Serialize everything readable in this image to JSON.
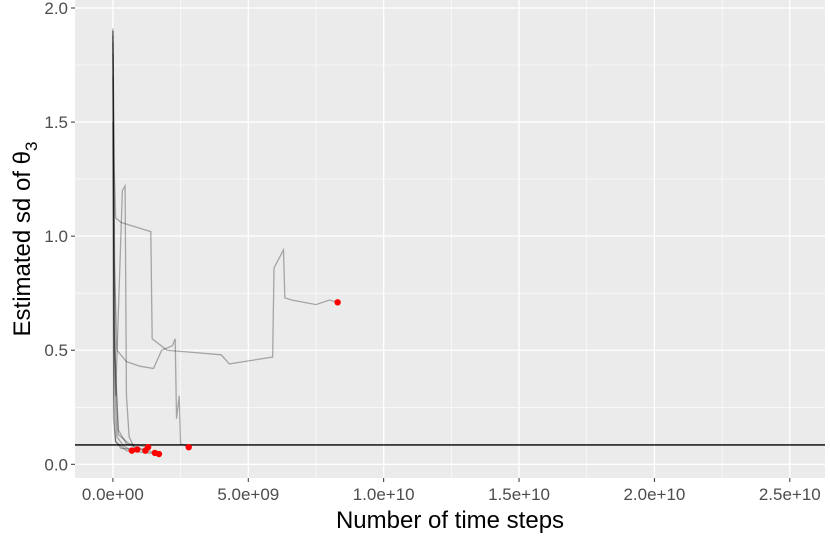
{
  "chart_data": {
    "type": "line",
    "x_label": "Number of time steps",
    "y_label": {
      "text": "Estimated sd of θ",
      "subscript": "3"
    },
    "xlim": [
      -1400000000.0,
      26300000000.0
    ],
    "ylim": [
      -0.06,
      2.035
    ],
    "xticks": [
      {
        "value": 0,
        "label": "0.0e+00"
      },
      {
        "value": 5000000000.0,
        "label": "5.0e+09"
      },
      {
        "value": 10000000000.0,
        "label": "1.0e+10"
      },
      {
        "value": 15000000000.0,
        "label": "1.5e+10"
      },
      {
        "value": 20000000000.0,
        "label": "2.0e+10"
      },
      {
        "value": 25000000000.0,
        "label": "2.5e+10"
      }
    ],
    "yticks": [
      {
        "value": 0,
        "label": "0.0"
      },
      {
        "value": 0.5,
        "label": "0.5"
      },
      {
        "value": 1,
        "label": "1.0"
      },
      {
        "value": 1.5,
        "label": "1.5"
      },
      {
        "value": 2,
        "label": "2.0"
      }
    ],
    "x_minor_ticks": [
      2500000000.0,
      7500000000.0,
      12500000000.0,
      17500000000.0,
      22500000000.0
    ],
    "y_minor_ticks": [
      0.25,
      0.75,
      1.25,
      1.75
    ],
    "grid": true,
    "line_color": "#000000",
    "line_opacity": 0.3,
    "endpoint_color": "#ff0000",
    "hline": 0.085,
    "hline_color": "#000000",
    "series": [
      {
        "x": [
          0,
          50000000.0,
          100000000.0,
          300000000.0,
          1400000000.0,
          1450000000.0,
          2000000000.0,
          3000000000.0,
          4000000000.0,
          4300000000.0,
          5900000000.0,
          5950000000.0,
          6300000000.0,
          6350000000.0,
          6600000000.0,
          7500000000.0,
          8000000000.0,
          8300000000.0
        ],
        "values": [
          1.9,
          1.3,
          1.08,
          1.06,
          1.02,
          0.55,
          0.5,
          0.49,
          0.48,
          0.44,
          0.47,
          0.86,
          0.94,
          0.73,
          0.72,
          0.7,
          0.72,
          0.71
        ]
      },
      {
        "x": [
          0,
          50000000.0,
          150000000.0,
          500000000.0,
          1000000000.0,
          1500000000.0,
          1800000000.0,
          2200000000.0,
          2300000000.0,
          2350000000.0,
          2450000000.0,
          2500000000.0,
          2800000000.0
        ],
        "values": [
          1.85,
          0.9,
          0.5,
          0.45,
          0.43,
          0.42,
          0.5,
          0.52,
          0.55,
          0.2,
          0.3,
          0.09,
          0.075
        ]
      },
      {
        "x": [
          0,
          100000000.0,
          350000000.0,
          450000000.0,
          500000000.0,
          600000000.0,
          800000000.0,
          1200000000.0
        ],
        "values": [
          1.9,
          0.3,
          1.2,
          1.22,
          0.3,
          0.12,
          0.07,
          0.06
        ]
      },
      {
        "x": [
          0,
          50000000.0,
          200000000.0,
          500000000.0,
          1000000000.0,
          1550000000.0
        ],
        "values": [
          1.88,
          0.5,
          0.15,
          0.09,
          0.07,
          0.05
        ]
      },
      {
        "x": [
          0,
          50000000.0,
          150000000.0,
          400000000.0,
          700000000.0
        ],
        "values": [
          1.8,
          0.4,
          0.12,
          0.08,
          0.06
        ]
      },
      {
        "x": [
          0,
          30000000.0,
          100000000.0,
          300000000.0,
          900000000.0
        ],
        "values": [
          1.7,
          0.3,
          0.1,
          0.07,
          0.065
        ]
      },
      {
        "x": [
          0,
          40000000.0,
          200000000.0,
          600000000.0,
          1300000000.0
        ],
        "values": [
          1.91,
          0.6,
          0.13,
          0.09,
          0.075
        ]
      },
      {
        "x": [
          0,
          20000000.0,
          100000000.0,
          500000000.0,
          1700000000.0
        ],
        "values": [
          1.5,
          0.2,
          0.1,
          0.06,
          0.045
        ]
      }
    ]
  }
}
